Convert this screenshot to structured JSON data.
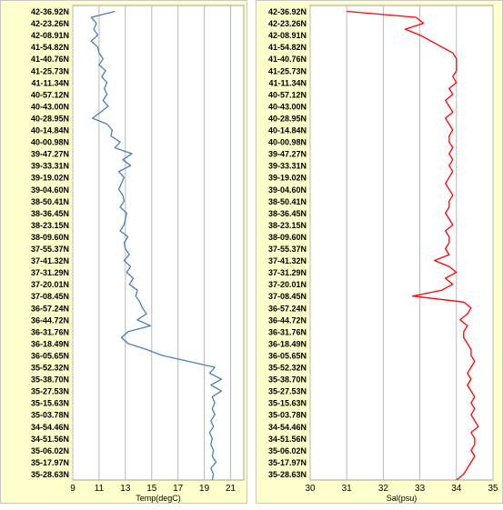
{
  "chart_data": [
    {
      "type": "line",
      "title": "",
      "xlabel": "Temp(degC)",
      "ylabel": "",
      "xlim": [
        9,
        22
      ],
      "xticks": [
        9,
        11,
        13,
        15,
        17,
        19,
        21
      ],
      "grid": true,
      "y_axis": "latitude",
      "y_direction": "north-at-top",
      "y_tick_labels": [
        "42-36.92N",
        "42-23.26N",
        "42-08.91N",
        "41-54.82N",
        "41-40.76N",
        "41-25.73N",
        "41-11.34N",
        "40-57.12N",
        "40-43.00N",
        "40-28.95N",
        "40-14.84N",
        "40-00.98N",
        "39-47.27N",
        "39-33.31N",
        "39-19.02N",
        "39-04.60N",
        "38-50.41N",
        "38-36.45N",
        "38-23.15N",
        "38-09.60N",
        "37-55.37N",
        "37-41.32N",
        "37-31.29N",
        "37-20.01N",
        "37-08.45N",
        "36-57.24N",
        "36-44.72N",
        "36-31.76N",
        "36-18.49N",
        "36-05.65N",
        "35-52.32N",
        "35-38.70N",
        "35-27.53N",
        "35-15.63N",
        "35-03.78N",
        "34-54.46N",
        "34-51.56N",
        "35-06.02N",
        "35-17.97N",
        "35-28.63N"
      ],
      "series": [
        {
          "color": "#4a7ebb",
          "y": [
            0,
            0.5,
            1,
            1.5,
            2,
            2.5,
            3,
            3.5,
            4,
            4.5,
            5,
            5.5,
            6,
            6.5,
            7,
            7.5,
            8,
            8.5,
            9,
            9.5,
            10,
            10.5,
            11,
            11.5,
            12,
            12.5,
            13,
            13.5,
            14,
            14.5,
            15,
            15.5,
            16,
            16.5,
            17,
            17.5,
            18,
            18.5,
            19,
            19.5,
            20,
            20.5,
            21,
            21.5,
            22,
            22.5,
            23,
            23.5,
            24,
            24.5,
            25,
            25.5,
            26,
            26.5,
            27,
            27.5,
            28,
            28.5,
            29,
            29.5,
            30,
            30.5,
            31,
            31.5,
            32,
            32.5,
            33,
            33.5,
            34,
            34.5,
            35,
            35.5,
            36,
            36.5,
            37,
            37.5,
            38,
            38.5,
            39,
            39.5
          ],
          "values": [
            12.2,
            10.4,
            10.8,
            10.6,
            10.9,
            10.4,
            10.9,
            11.0,
            11.3,
            11.0,
            11.5,
            11.2,
            11.6,
            11.4,
            11.6,
            11.3,
            11.7,
            11.1,
            10.5,
            11.6,
            12.0,
            11.9,
            12.6,
            12.2,
            13.5,
            12.8,
            13.4,
            12.5,
            12.9,
            12.7,
            12.5,
            12.8,
            12.9,
            12.6,
            13.1,
            13.0,
            12.9,
            12.6,
            13.2,
            12.9,
            13.0,
            13.3,
            12.9,
            13.4,
            13.1,
            13.6,
            13.3,
            13.9,
            13.8,
            14.1,
            14.3,
            14.6,
            13.9,
            14.9,
            13.2,
            12.7,
            13.2,
            14.6,
            15.8,
            17.8,
            19.8,
            19.4,
            20.3,
            19.5,
            20.3,
            19.6,
            19.8,
            19.6,
            19.8,
            19.5,
            19.7,
            19.4,
            19.6,
            19.5,
            19.7,
            19.6,
            19.9,
            19.5,
            19.7,
            19.6
          ]
        }
      ]
    },
    {
      "type": "line",
      "title": "",
      "xlabel": "Sal(psu)",
      "ylabel": "",
      "xlim": [
        30,
        35
      ],
      "xticks": [
        30,
        31,
        32,
        33,
        34,
        35
      ],
      "grid": true,
      "y_axis": "latitude",
      "y_direction": "north-at-top",
      "y_tick_labels": [
        "42-36.92N",
        "42-23.26N",
        "42-08.91N",
        "41-54.82N",
        "41-40.76N",
        "41-25.73N",
        "41-11.34N",
        "40-57.12N",
        "40-43.00N",
        "40-28.95N",
        "40-14.84N",
        "40-00.98N",
        "39-47.27N",
        "39-33.31N",
        "39-19.02N",
        "39-04.60N",
        "38-50.41N",
        "38-36.45N",
        "38-23.15N",
        "38-09.60N",
        "37-55.37N",
        "37-41.32N",
        "37-31.29N",
        "37-20.01N",
        "37-08.45N",
        "36-57.24N",
        "36-44.72N",
        "36-31.76N",
        "36-18.49N",
        "36-05.65N",
        "35-52.32N",
        "35-38.70N",
        "35-27.53N",
        "35-15.63N",
        "35-03.78N",
        "34-54.46N",
        "34-51.56N",
        "35-06.02N",
        "35-17.97N",
        "35-28.63N"
      ],
      "series": [
        {
          "color": "#ff0000",
          "y": [
            0,
            0.5,
            1,
            1.5,
            2,
            2.5,
            3,
            3.5,
            4,
            4.5,
            5,
            5.5,
            6,
            6.5,
            7,
            7.5,
            8,
            8.5,
            9,
            9.5,
            10,
            10.5,
            11,
            11.5,
            12,
            12.5,
            13,
            13.5,
            14,
            14.5,
            15,
            15.5,
            16,
            16.5,
            17,
            17.5,
            18,
            18.5,
            19,
            19.5,
            20,
            20.5,
            21,
            21.5,
            22,
            22.5,
            23,
            23.5,
            24,
            24.5,
            25,
            25.5,
            26,
            26.5,
            27,
            27.5,
            28,
            28.5,
            29,
            29.5,
            30,
            30.5,
            31,
            31.5,
            32,
            32.5,
            33,
            33.5,
            34,
            34.5,
            35,
            35.5,
            36,
            36.5,
            37,
            37.5,
            38,
            38.5,
            39,
            39.5
          ],
          "values": [
            31.0,
            32.9,
            33.1,
            32.6,
            33.0,
            33.3,
            33.6,
            33.9,
            34.0,
            34.0,
            34.0,
            33.9,
            34.0,
            33.8,
            33.9,
            33.7,
            33.8,
            33.9,
            33.7,
            33.8,
            33.9,
            33.8,
            33.8,
            33.9,
            33.8,
            33.9,
            33.8,
            33.9,
            33.8,
            33.7,
            33.8,
            33.9,
            33.8,
            33.8,
            33.7,
            33.8,
            33.9,
            33.7,
            33.8,
            33.8,
            33.7,
            33.8,
            33.4,
            33.8,
            34.0,
            33.7,
            33.9,
            33.6,
            32.8,
            34.2,
            34.4,
            34.3,
            34.1,
            34.3,
            34.2,
            34.2,
            34.3,
            34.4,
            34.4,
            34.5,
            34.4,
            34.3,
            34.4,
            34.3,
            34.4,
            34.5,
            34.4,
            34.5,
            34.4,
            34.5,
            34.6,
            34.4,
            34.5,
            34.5,
            34.4,
            34.5,
            34.4,
            34.3,
            34.2,
            34.0
          ]
        }
      ]
    }
  ]
}
